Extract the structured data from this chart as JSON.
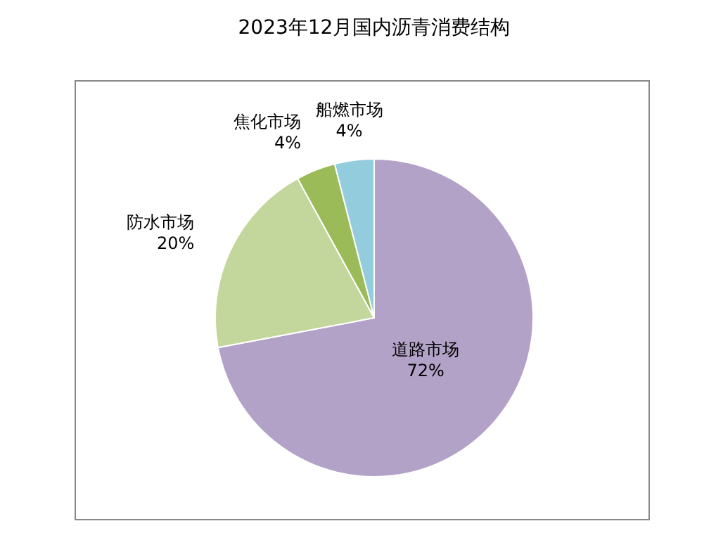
{
  "chart_data": {
    "type": "pie",
    "title": "2023年12月国内沥青消费结构",
    "categories": [
      "道路市场",
      "防水市场",
      "焦化市场",
      "船燃市场"
    ],
    "values": [
      72,
      20,
      4,
      4
    ],
    "value_labels": [
      "72%",
      "20%",
      "4%",
      "4%"
    ],
    "colors": [
      "#b3a2c7",
      "#c3d69b",
      "#9bbb59",
      "#93cddd"
    ]
  }
}
